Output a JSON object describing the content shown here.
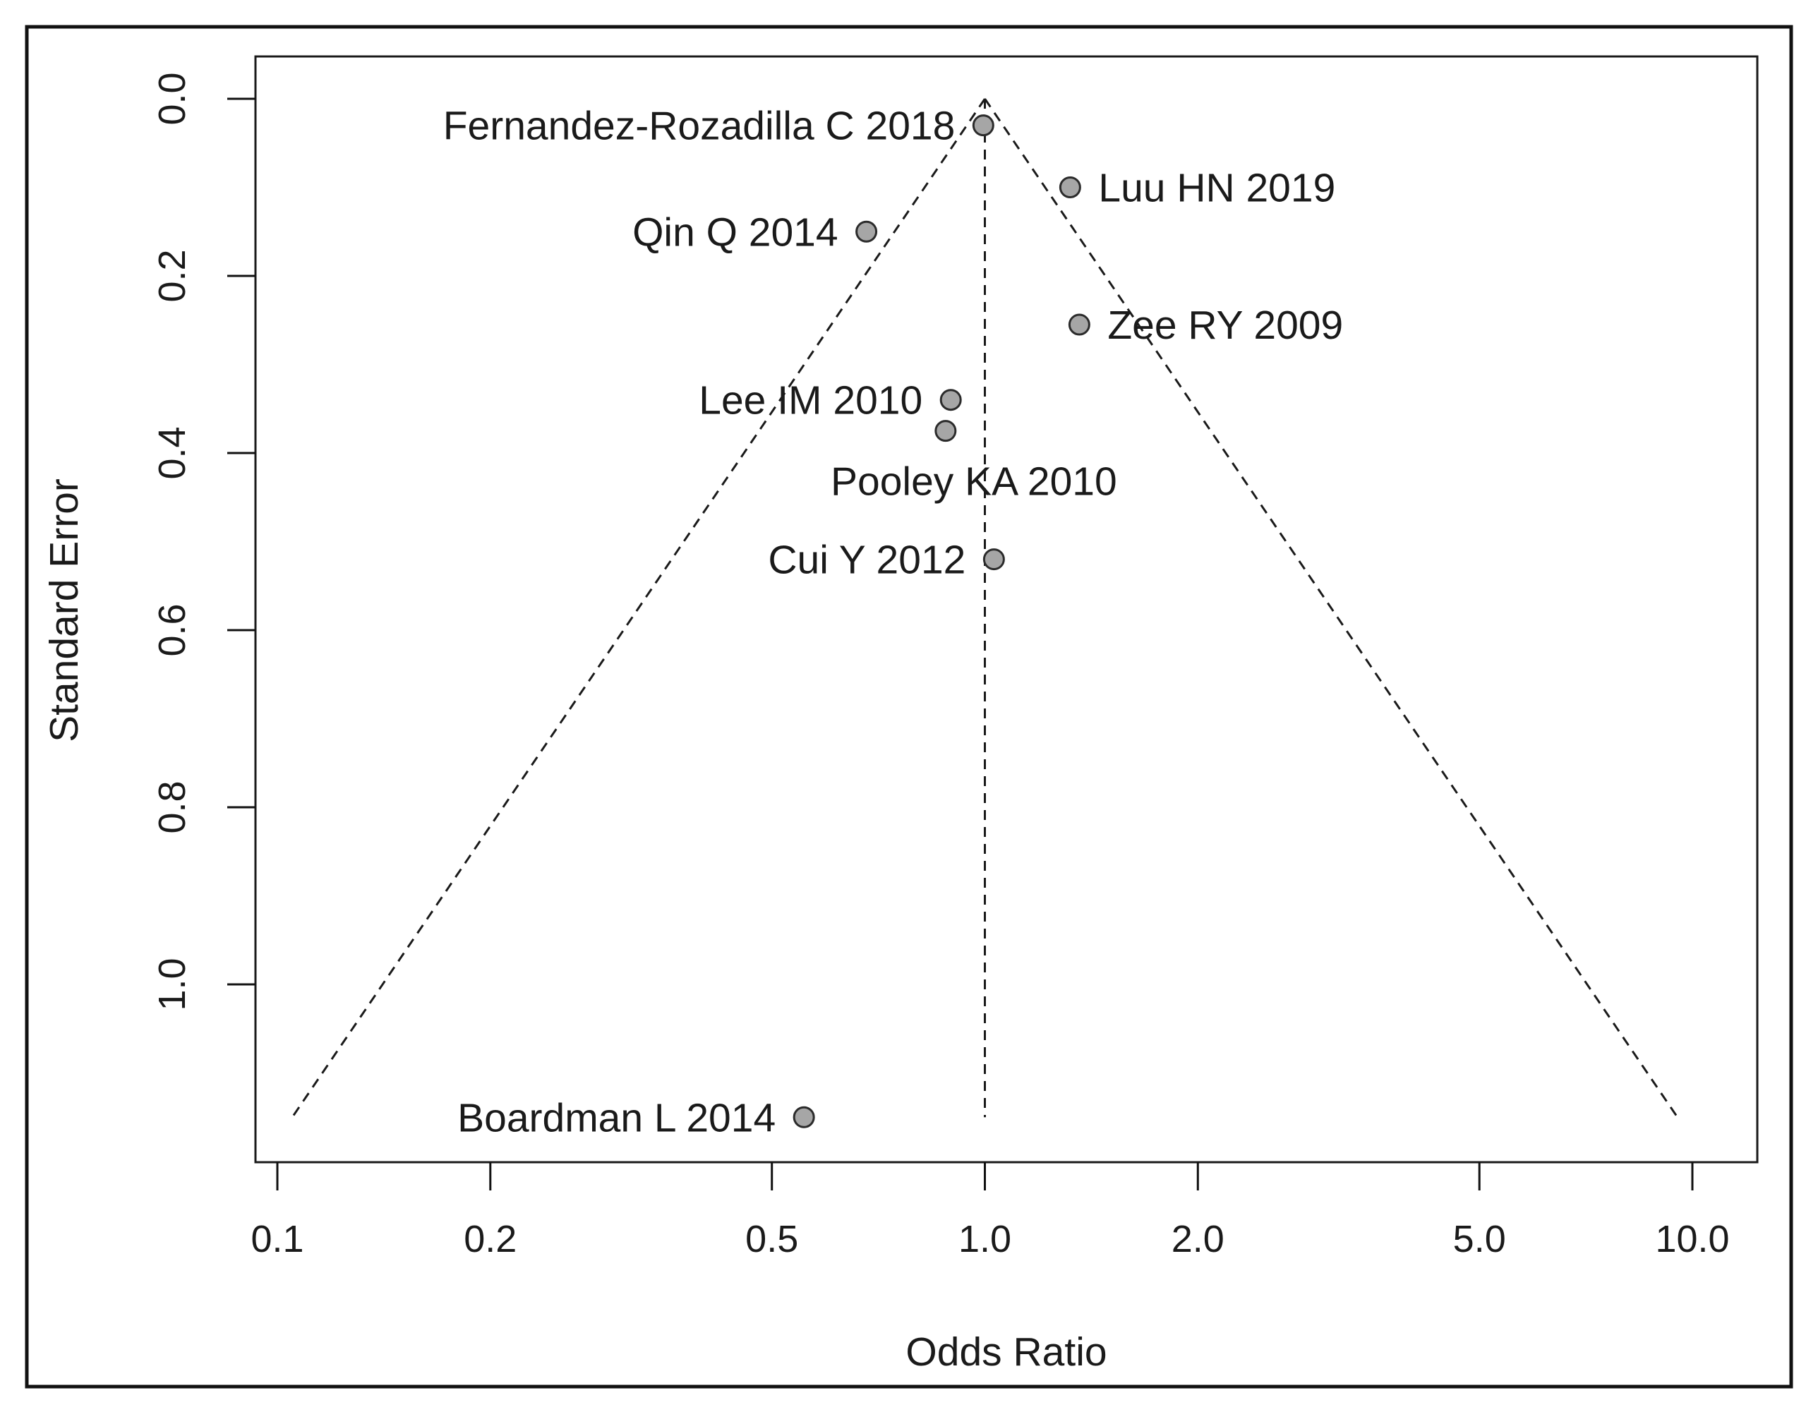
{
  "chart_data": {
    "type": "scatter",
    "subtype": "funnel-plot",
    "title": "",
    "xlabel": "Odds Ratio",
    "ylabel": "Standard Error",
    "x_scale": "log",
    "xlim": [
      0.1,
      10.0
    ],
    "ylim": [
      1.15,
      0.0
    ],
    "x_ticks": [
      {
        "value": 0.1,
        "label": "0.1"
      },
      {
        "value": 0.2,
        "label": "0.2"
      },
      {
        "value": 0.5,
        "label": "0.5"
      },
      {
        "value": 1.0,
        "label": "1.0"
      },
      {
        "value": 2.0,
        "label": "2.0"
      },
      {
        "value": 5.0,
        "label": "5.0"
      },
      {
        "value": 10.0,
        "label": "10.0"
      }
    ],
    "y_ticks": [
      {
        "value": 0.0,
        "label": "0.0"
      },
      {
        "value": 0.2,
        "label": "0.2"
      },
      {
        "value": 0.4,
        "label": "0.4"
      },
      {
        "value": 0.6,
        "label": "0.6"
      },
      {
        "value": 0.8,
        "label": "0.8"
      },
      {
        "value": 1.0,
        "label": "1.0"
      }
    ],
    "pooled_or": 1.0,
    "funnel_max_se": 1.15,
    "points": [
      {
        "label": "Fernandez-Rozadilla C 2018",
        "or": 0.995,
        "se": 0.03,
        "label_side": "left"
      },
      {
        "label": "Luu HN 2019",
        "or": 1.32,
        "se": 0.1,
        "label_side": "right"
      },
      {
        "label": "Qin Q 2014",
        "or": 0.68,
        "se": 0.15,
        "label_side": "left"
      },
      {
        "label": "Zee RY 2009",
        "or": 1.36,
        "se": 0.255,
        "label_side": "right"
      },
      {
        "label": "Lee IM 2010",
        "or": 0.895,
        "se": 0.34,
        "label_side": "left"
      },
      {
        "label": "Pooley KA 2010",
        "or": 0.88,
        "se": 0.375,
        "label_side": "below"
      },
      {
        "label": "Cui Y 2012",
        "or": 1.03,
        "se": 0.52,
        "label_side": "left"
      },
      {
        "label": "Boardman L 2014",
        "or": 0.555,
        "se": 1.15,
        "label_side": "left"
      }
    ],
    "colors": {
      "point_fill": "#a6a6a6",
      "point_stroke": "#2b2b2b",
      "line": "#1a1a1a",
      "frame": "#111111"
    }
  }
}
